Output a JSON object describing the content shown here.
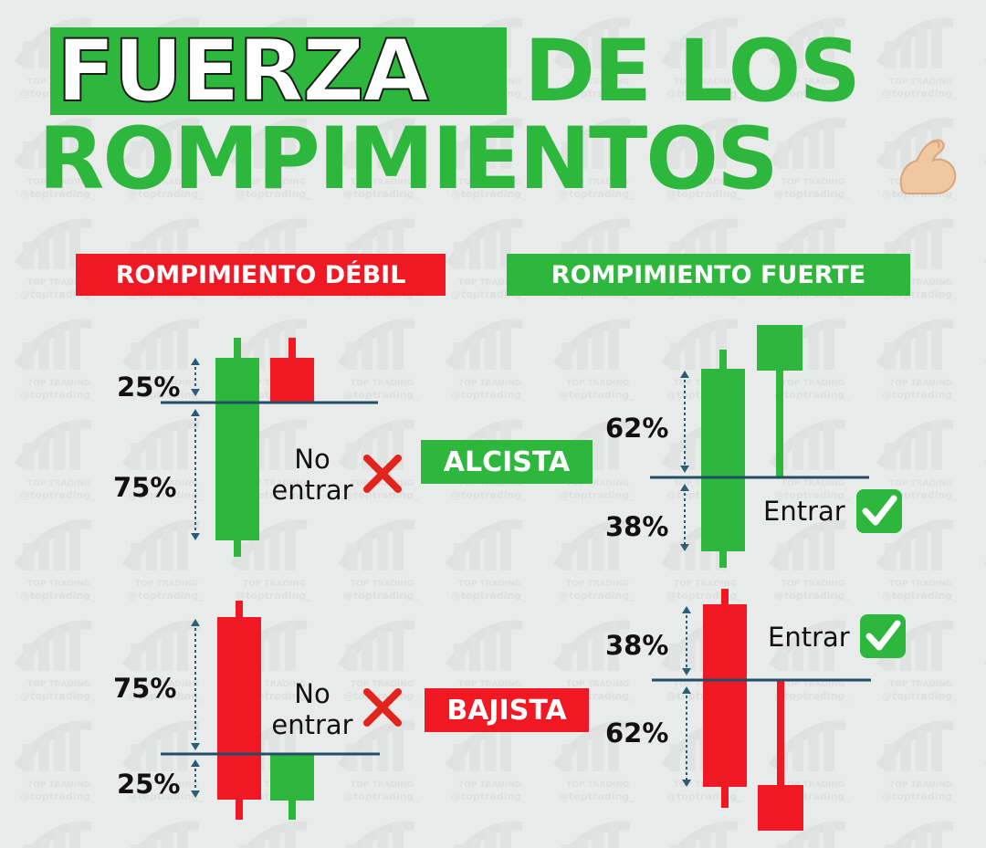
{
  "title": {
    "line1_highlight": "FUERZA",
    "line1_rest": "DE LOS",
    "line2": "ROMPIMIENTOS",
    "emoji_icon": "flexed-biceps-icon"
  },
  "sections": {
    "weak_label": "ROMPIMIENTO DÉBIL",
    "strong_label": "ROMPIMIENTO FUERTE"
  },
  "alcista": {
    "label": "ALCISTA",
    "weak": {
      "pct_top": "25%",
      "pct_bottom": "75%",
      "note_line1": "No",
      "note_line2": "entrar"
    },
    "strong": {
      "pct_top": "62%",
      "pct_bottom": "38%",
      "note": "Entrar"
    }
  },
  "bajista": {
    "label": "BAJISTA",
    "weak": {
      "pct_top": "75%",
      "pct_bottom": "25%",
      "note_line1": "No",
      "note_line2": "entrar"
    },
    "strong": {
      "pct_top": "38%",
      "pct_bottom": "62%",
      "note": "Entrar"
    }
  },
  "watermark": {
    "brand": "TOP TRADING",
    "handle": "@toptrading_"
  },
  "colors": {
    "green": "#2db83d",
    "red": "#f01923",
    "level_line": "#1f4e66",
    "arrow": "#2a5d78",
    "check_bg": "#2db83d",
    "cross": "#e3241c"
  }
}
